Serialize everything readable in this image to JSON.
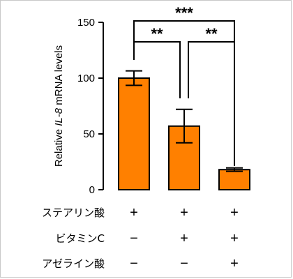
{
  "chart_data": {
    "type": "bar",
    "title": "",
    "ylabel": {
      "pre": "Relative ",
      "gene": "IL-8",
      "post": " mRNA levels"
    },
    "ylim": [
      0,
      150
    ],
    "yticks": [
      0,
      50,
      100,
      150
    ],
    "bar_color": "#ff8000",
    "values": [
      100,
      57,
      18
    ],
    "errors": [
      6.5,
      15,
      1.5
    ],
    "significance": [
      {
        "from": 0,
        "to": 1,
        "label": "**"
      },
      {
        "from": 1,
        "to": 2,
        "label": "**"
      },
      {
        "from": 0,
        "to": 2,
        "label": "***"
      }
    ],
    "conditions": [
      {
        "name": "ステアリン酸",
        "marks": [
          "+",
          "+",
          "+"
        ]
      },
      {
        "name": "ビタミンC",
        "marks": [
          "−",
          "+",
          "+"
        ]
      },
      {
        "name": "アゼライン酸",
        "marks": [
          "−",
          "−",
          "+"
        ]
      }
    ]
  }
}
